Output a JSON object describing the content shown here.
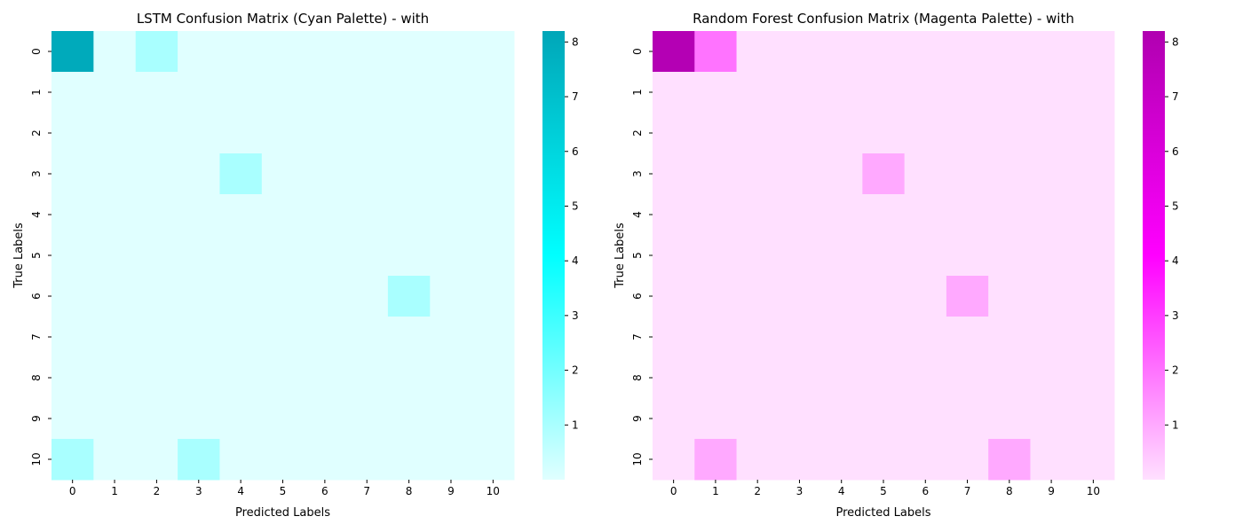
{
  "chart_data": [
    {
      "type": "heatmap",
      "title": "LSTM Confusion Matrix (Cyan Palette) - with",
      "xlabel": "Predicted Labels",
      "ylabel": "True Labels",
      "x_ticks": [
        "0",
        "1",
        "2",
        "3",
        "4",
        "5",
        "6",
        "7",
        "8",
        "9",
        "10"
      ],
      "y_ticks": [
        "0",
        "1",
        "2",
        "3",
        "4",
        "5",
        "6",
        "7",
        "8",
        "9",
        "10"
      ],
      "matrix": [
        [
          8,
          0,
          1,
          0,
          0,
          0,
          0,
          0,
          0,
          0,
          0
        ],
        [
          0,
          0,
          0,
          0,
          0,
          0,
          0,
          0,
          0,
          0,
          0
        ],
        [
          0,
          0,
          0,
          0,
          0,
          0,
          0,
          0,
          0,
          0,
          0
        ],
        [
          0,
          0,
          0,
          0,
          1,
          0,
          0,
          0,
          0,
          0,
          0
        ],
        [
          0,
          0,
          0,
          0,
          0,
          0,
          0,
          0,
          0,
          0,
          0
        ],
        [
          0,
          0,
          0,
          0,
          0,
          0,
          0,
          0,
          0,
          0,
          0
        ],
        [
          0,
          0,
          0,
          0,
          0,
          0,
          0,
          0,
          1,
          0,
          0
        ],
        [
          0,
          0,
          0,
          0,
          0,
          0,
          0,
          0,
          0,
          0,
          0
        ],
        [
          0,
          0,
          0,
          0,
          0,
          0,
          0,
          0,
          0,
          0,
          0
        ],
        [
          0,
          0,
          0,
          0,
          0,
          0,
          0,
          0,
          0,
          0,
          0
        ],
        [
          1,
          0,
          0,
          1,
          0,
          0,
          0,
          0,
          0,
          0,
          0
        ]
      ],
      "colorbar": {
        "range": [
          0,
          8.2
        ],
        "ticks": [
          1,
          2,
          3,
          4,
          5,
          6,
          7,
          8
        ],
        "colors": [
          "#e0ffff",
          "#00ffff",
          "#00a6b8"
        ]
      }
    },
    {
      "type": "heatmap",
      "title": "Random Forest Confusion Matrix (Magenta Palette) - with",
      "xlabel": "Predicted Labels",
      "ylabel": "True Labels",
      "x_ticks": [
        "0",
        "1",
        "2",
        "3",
        "4",
        "5",
        "6",
        "7",
        "8",
        "9",
        "10"
      ],
      "y_ticks": [
        "0",
        "1",
        "2",
        "3",
        "4",
        "5",
        "6",
        "7",
        "8",
        "9",
        "10"
      ],
      "matrix": [
        [
          8,
          2,
          0,
          0,
          0,
          0,
          0,
          0,
          0,
          0,
          0
        ],
        [
          0,
          0,
          0,
          0,
          0,
          0,
          0,
          0,
          0,
          0,
          0
        ],
        [
          0,
          0,
          0,
          0,
          0,
          0,
          0,
          0,
          0,
          0,
          0
        ],
        [
          0,
          0,
          0,
          0,
          0,
          1,
          0,
          0,
          0,
          0,
          0
        ],
        [
          0,
          0,
          0,
          0,
          0,
          0,
          0,
          0,
          0,
          0,
          0
        ],
        [
          0,
          0,
          0,
          0,
          0,
          0,
          0,
          0,
          0,
          0,
          0
        ],
        [
          0,
          0,
          0,
          0,
          0,
          0,
          0,
          1,
          0,
          0,
          0
        ],
        [
          0,
          0,
          0,
          0,
          0,
          0,
          0,
          0,
          0,
          0,
          0
        ],
        [
          0,
          0,
          0,
          0,
          0,
          0,
          0,
          0,
          0,
          0,
          0
        ],
        [
          0,
          0,
          0,
          0,
          0,
          0,
          0,
          0,
          0,
          0,
          0
        ],
        [
          0,
          1,
          0,
          0,
          0,
          0,
          0,
          0,
          1,
          0,
          0
        ]
      ],
      "colorbar": {
        "range": [
          0,
          8.2
        ],
        "ticks": [
          1,
          2,
          3,
          4,
          5,
          6,
          7,
          8
        ],
        "colors": [
          "#ffe0ff",
          "#ff00ff",
          "#b000b0"
        ]
      }
    }
  ]
}
